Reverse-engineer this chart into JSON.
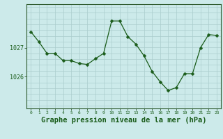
{
  "x": [
    0,
    1,
    2,
    3,
    4,
    5,
    6,
    7,
    8,
    9,
    10,
    11,
    12,
    13,
    14,
    15,
    16,
    17,
    18,
    19,
    20,
    21,
    22,
    23
  ],
  "y": [
    1027.55,
    1027.2,
    1026.8,
    1026.8,
    1026.55,
    1026.55,
    1026.45,
    1026.42,
    1026.62,
    1026.8,
    1027.92,
    1027.92,
    1027.38,
    1027.12,
    1026.72,
    1026.18,
    1025.82,
    1025.52,
    1025.62,
    1026.1,
    1026.1,
    1027.0,
    1027.45,
    1027.42
  ],
  "line_color": "#1a5c1a",
  "marker": "D",
  "marker_size": 2.5,
  "bg_color": "#cceaea",
  "grid_color": "#aacccc",
  "axis_color": "#2d5a2d",
  "xlabel": "Graphe pression niveau de la mer (hPa)",
  "xlabel_fontsize": 7.5,
  "yticks": [
    1026,
    1027
  ],
  "ylim": [
    1024.9,
    1028.5
  ],
  "xlim": [
    -0.5,
    23.5
  ],
  "tick_label_color": "#1a5c1a"
}
